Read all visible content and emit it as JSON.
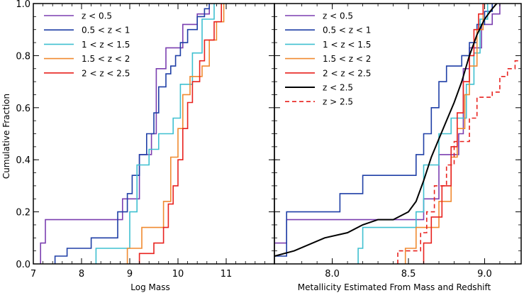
{
  "figure": {
    "ylabel": "Cumulative Fraction"
  },
  "chart_data": [
    {
      "type": "line",
      "panel": "left",
      "xlabel": "Log Mass",
      "ylabel": "Cumulative Fraction",
      "xlim": [
        7,
        12
      ],
      "ylim": [
        0,
        1
      ],
      "xticks": [
        7,
        8,
        9,
        10,
        11
      ],
      "xtick_labels": [
        "7",
        "8",
        "9",
        "10",
        "11"
      ],
      "yticks": [
        0,
        0.2,
        0.4,
        0.6,
        0.8,
        1.0
      ],
      "ytick_labels": [
        "0.0",
        "0.2",
        "0.4",
        "0.6",
        "0.8",
        "1.0"
      ],
      "legend_position": "top-left",
      "series": [
        {
          "name": "z < 0.5",
          "color": "#7b3fb0",
          "style": "solid",
          "x": [
            7.15,
            7.15,
            7.25,
            7.25,
            8.85,
            8.85,
            9.2,
            9.2,
            9.45,
            9.45,
            9.55,
            9.55,
            9.75,
            9.75,
            10.1,
            10.1,
            10.4,
            10.4,
            10.65,
            10.65
          ],
          "y": [
            0.0,
            0.08,
            0.08,
            0.17,
            0.17,
            0.25,
            0.25,
            0.42,
            0.42,
            0.5,
            0.5,
            0.75,
            0.75,
            0.83,
            0.83,
            0.92,
            0.92,
            0.96,
            0.96,
            1.0
          ]
        },
        {
          "name": "0.5 < z < 1",
          "color": "#1f3fa6",
          "style": "solid",
          "x": [
            7.45,
            7.45,
            7.7,
            7.7,
            8.2,
            8.2,
            8.75,
            8.75,
            8.95,
            8.95,
            9.05,
            9.05,
            9.2,
            9.2,
            9.35,
            9.35,
            9.5,
            9.5,
            9.6,
            9.6,
            9.75,
            9.75,
            9.85,
            9.85,
            9.95,
            9.95,
            10.05,
            10.05,
            10.2,
            10.2,
            10.4,
            10.4,
            10.55,
            10.55,
            10.65,
            10.65
          ],
          "y": [
            0.0,
            0.03,
            0.03,
            0.06,
            0.06,
            0.1,
            0.1,
            0.2,
            0.2,
            0.27,
            0.27,
            0.34,
            0.34,
            0.42,
            0.42,
            0.5,
            0.5,
            0.58,
            0.58,
            0.68,
            0.68,
            0.73,
            0.73,
            0.76,
            0.76,
            0.8,
            0.8,
            0.85,
            0.85,
            0.9,
            0.9,
            0.95,
            0.95,
            0.98,
            0.98,
            1.0
          ]
        },
        {
          "name": "1 < z < 1.5",
          "color": "#3fc0d0",
          "style": "solid",
          "x": [
            8.3,
            8.3,
            9.0,
            9.0,
            9.15,
            9.15,
            9.4,
            9.4,
            9.6,
            9.6,
            9.9,
            9.9,
            10.05,
            10.05,
            10.3,
            10.3,
            10.5,
            10.5,
            10.75,
            10.75
          ],
          "y": [
            0.0,
            0.06,
            0.06,
            0.2,
            0.2,
            0.38,
            0.38,
            0.44,
            0.44,
            0.5,
            0.5,
            0.56,
            0.56,
            0.69,
            0.69,
            0.81,
            0.81,
            0.94,
            0.94,
            1.0
          ]
        },
        {
          "name": "1.5 < z < 2",
          "color": "#f08a30",
          "style": "solid",
          "x": [
            8.95,
            8.95,
            9.25,
            9.25,
            9.7,
            9.7,
            9.85,
            9.85,
            10.0,
            10.0,
            10.1,
            10.1,
            10.25,
            10.25,
            10.5,
            10.5,
            10.65,
            10.65,
            10.8,
            10.8,
            10.95,
            10.95
          ],
          "y": [
            0.0,
            0.06,
            0.06,
            0.14,
            0.14,
            0.24,
            0.24,
            0.41,
            0.41,
            0.52,
            0.52,
            0.65,
            0.65,
            0.72,
            0.72,
            0.76,
            0.76,
            0.86,
            0.86,
            0.93,
            0.93,
            1.0
          ]
        },
        {
          "name": "2 < z < 2.5",
          "color": "#e8221e",
          "style": "solid",
          "x": [
            9.2,
            9.2,
            9.5,
            9.5,
            9.7,
            9.7,
            9.8,
            9.8,
            9.9,
            9.9,
            10.0,
            10.0,
            10.1,
            10.1,
            10.2,
            10.2,
            10.3,
            10.3,
            10.45,
            10.45,
            10.55,
            10.55,
            10.75,
            10.75,
            10.9,
            10.9
          ],
          "y": [
            0.0,
            0.04,
            0.04,
            0.08,
            0.08,
            0.14,
            0.14,
            0.23,
            0.23,
            0.3,
            0.3,
            0.4,
            0.4,
            0.52,
            0.52,
            0.62,
            0.62,
            0.7,
            0.7,
            0.78,
            0.78,
            0.86,
            0.86,
            0.93,
            0.93,
            1.0
          ]
        }
      ]
    },
    {
      "type": "line",
      "panel": "right",
      "xlabel": "Metallicity Estimated From Mass and Redshift",
      "xlim": [
        7.62,
        9.24
      ],
      "ylim": [
        0,
        1
      ],
      "xticks": [
        8.0,
        8.5,
        9.0
      ],
      "xtick_labels": [
        "8.0",
        "8.5",
        "9.0"
      ],
      "yticks": [
        0,
        0.2,
        0.4,
        0.6,
        0.8,
        1.0
      ],
      "legend_position": "top-left",
      "series": [
        {
          "name": "z < 0.5",
          "color": "#7b3fb0",
          "style": "solid",
          "x": [
            7.62,
            7.62,
            7.7,
            7.7,
            8.6,
            8.6,
            8.7,
            8.7,
            8.83,
            8.83,
            8.86,
            8.86,
            8.9,
            8.9,
            8.98,
            8.98,
            9.05,
            9.05,
            9.1,
            9.1
          ],
          "y": [
            0.08,
            0.08,
            0.08,
            0.17,
            0.17,
            0.25,
            0.25,
            0.42,
            0.42,
            0.5,
            0.5,
            0.75,
            0.75,
            0.83,
            0.83,
            0.92,
            0.92,
            0.96,
            0.96,
            1.0
          ]
        },
        {
          "name": "0.5 < z < 1",
          "color": "#1f3fa6",
          "style": "solid",
          "x": [
            7.62,
            7.62,
            7.7,
            7.7,
            8.05,
            8.05,
            8.2,
            8.2,
            8.55,
            8.55,
            8.6,
            8.6,
            8.65,
            8.65,
            8.7,
            8.7,
            8.75,
            8.75,
            8.85,
            8.85,
            8.9,
            8.9,
            8.95,
            8.95,
            9.0,
            9.0,
            9.05,
            9.05
          ],
          "y": [
            0.03,
            0.03,
            0.03,
            0.2,
            0.2,
            0.27,
            0.27,
            0.34,
            0.34,
            0.42,
            0.42,
            0.5,
            0.5,
            0.6,
            0.6,
            0.7,
            0.7,
            0.76,
            0.76,
            0.8,
            0.8,
            0.85,
            0.85,
            0.92,
            0.92,
            0.97,
            0.97,
            1.0
          ]
        },
        {
          "name": "1 < z < 1.5",
          "color": "#3fc0d0",
          "style": "solid",
          "x": [
            8.17,
            8.17,
            8.2,
            8.2,
            8.55,
            8.55,
            8.6,
            8.6,
            8.7,
            8.7,
            8.78,
            8.78,
            8.88,
            8.88,
            8.93,
            8.93,
            8.97,
            8.97,
            9.02,
            9.02
          ],
          "y": [
            0.0,
            0.06,
            0.06,
            0.14,
            0.14,
            0.2,
            0.2,
            0.38,
            0.38,
            0.5,
            0.5,
            0.56,
            0.56,
            0.69,
            0.69,
            0.81,
            0.81,
            0.94,
            0.94,
            1.0
          ]
        },
        {
          "name": "1.5 < z < 2",
          "color": "#f08a30",
          "style": "solid",
          "x": [
            8.48,
            8.48,
            8.55,
            8.55,
            8.7,
            8.7,
            8.78,
            8.78,
            8.82,
            8.82,
            8.87,
            8.87,
            8.9,
            8.9,
            8.95,
            8.95,
            8.99,
            8.99
          ],
          "y": [
            0.0,
            0.06,
            0.06,
            0.14,
            0.14,
            0.24,
            0.24,
            0.41,
            0.41,
            0.52,
            0.52,
            0.65,
            0.65,
            0.76,
            0.76,
            0.9,
            0.9,
            1.0
          ]
        },
        {
          "name": "2 < z < 2.5",
          "color": "#e8221e",
          "style": "solid",
          "x": [
            8.6,
            8.6,
            8.65,
            8.65,
            8.72,
            8.72,
            8.78,
            8.78,
            8.82,
            8.82,
            8.86,
            8.86,
            8.9,
            8.9,
            8.93,
            8.93,
            8.96,
            8.96,
            8.99,
            8.99
          ],
          "y": [
            0.0,
            0.08,
            0.08,
            0.18,
            0.18,
            0.3,
            0.3,
            0.45,
            0.45,
            0.58,
            0.58,
            0.7,
            0.7,
            0.8,
            0.8,
            0.9,
            0.9,
            0.96,
            0.96,
            1.0
          ]
        },
        {
          "name": "z < 2.5",
          "color": "#000000",
          "style": "solid",
          "x": [
            7.62,
            7.75,
            7.95,
            8.1,
            8.2,
            8.3,
            8.4,
            8.5,
            8.55,
            8.6,
            8.65,
            8.7,
            8.75,
            8.8,
            8.85,
            8.9,
            8.95,
            9.0,
            9.05,
            9.08
          ],
          "y": [
            0.03,
            0.05,
            0.1,
            0.12,
            0.15,
            0.17,
            0.17,
            0.2,
            0.24,
            0.32,
            0.41,
            0.48,
            0.55,
            0.62,
            0.7,
            0.8,
            0.88,
            0.94,
            0.98,
            1.0
          ]
        },
        {
          "name": "z > 2.5",
          "color": "#e8221e",
          "style": "dashed",
          "x": [
            8.43,
            8.43,
            8.58,
            8.58,
            8.62,
            8.62,
            8.67,
            8.67,
            8.75,
            8.75,
            8.8,
            8.8,
            8.9,
            8.9,
            8.95,
            8.95,
            9.05,
            9.05,
            9.1,
            9.1,
            9.15,
            9.15,
            9.2,
            9.2,
            9.24
          ],
          "y": [
            0.0,
            0.05,
            0.05,
            0.12,
            0.12,
            0.2,
            0.2,
            0.3,
            0.3,
            0.38,
            0.38,
            0.47,
            0.47,
            0.56,
            0.56,
            0.64,
            0.64,
            0.66,
            0.66,
            0.72,
            0.72,
            0.75,
            0.75,
            0.78,
            0.78
          ]
        }
      ]
    }
  ]
}
